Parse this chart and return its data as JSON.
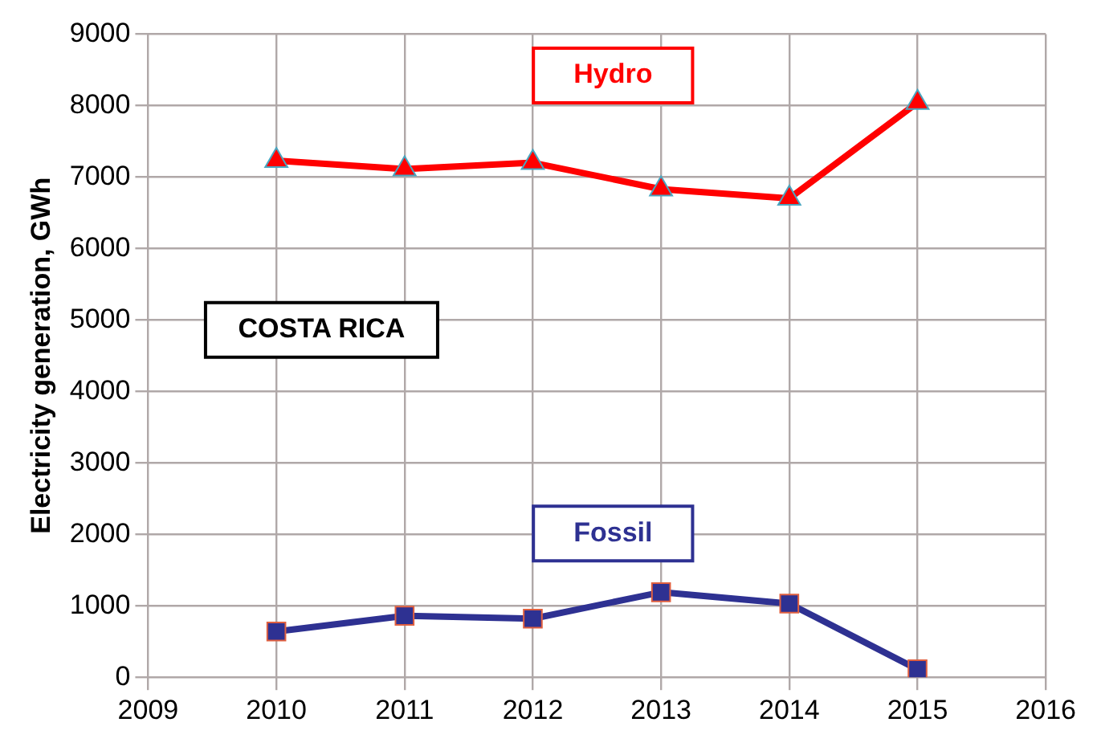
{
  "chart_data": {
    "type": "line",
    "ylabel": "Electricity generation, GWh",
    "x": [
      2010,
      2011,
      2012,
      2013,
      2014,
      2015
    ],
    "series": [
      {
        "name": "Hydro",
        "color": "#ff0000",
        "marker": "triangle",
        "values": [
          7230,
          7110,
          7200,
          6830,
          6700,
          8040
        ]
      },
      {
        "name": "Fossil",
        "color": "#2e3192",
        "marker": "square",
        "values": [
          640,
          860,
          820,
          1190,
          1030,
          110
        ]
      }
    ],
    "xlim": [
      2009,
      2016
    ],
    "xticks": [
      2009,
      2010,
      2011,
      2012,
      2013,
      2014,
      2015,
      2016
    ],
    "ylim": [
      0,
      9000
    ],
    "yticks": [
      0,
      1000,
      2000,
      3000,
      4000,
      5000,
      6000,
      7000,
      8000,
      9000
    ],
    "grid": true,
    "legend": false,
    "annotations": [
      "COSTA RICA"
    ]
  }
}
